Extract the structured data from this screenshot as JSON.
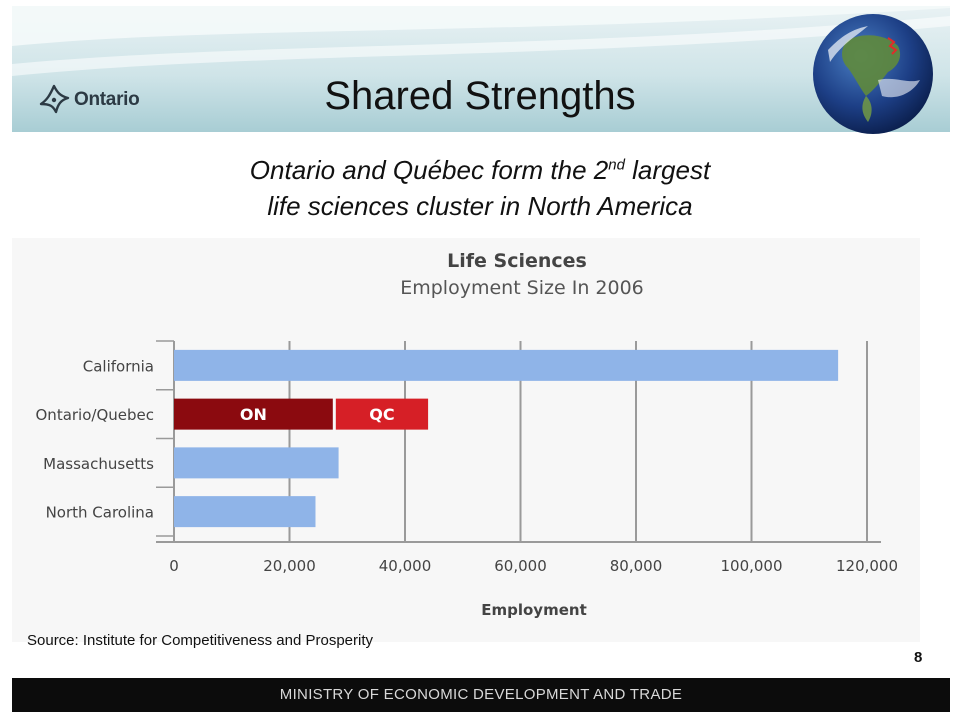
{
  "slide": {
    "title": "Shared Strengths",
    "subtitle_line1_before": "Ontario and Québec form the 2",
    "subtitle_sup": "nd",
    "subtitle_line1_after": " largest",
    "subtitle_line2": "life sciences cluster in North America",
    "logo_text": "Ontario",
    "source": "Source: Institute for Competitiveness and Prosperity",
    "page_number": "8",
    "footer": "MINISTRY OF ECONOMIC DEVELOPMENT AND TRADE"
  },
  "colors": {
    "bar_default": "#8fb4e8",
    "bar_on": "#8b0a0f",
    "bar_qc": "#d61f26",
    "grid": "#9a9a9a",
    "footer_bg": "#0c0c0c"
  },
  "chart_data": {
    "type": "bar",
    "orientation": "horizontal",
    "title": "Life Sciences",
    "subtitle": "Employment Size In 2006",
    "xlabel": "Employment",
    "ylabel": "",
    "xlim": [
      0,
      120000
    ],
    "xticks": [
      0,
      20000,
      40000,
      60000,
      80000,
      100000,
      120000
    ],
    "xtick_labels": [
      "0",
      "20,000",
      "40,000",
      "60,000",
      "80,000",
      "100,000",
      "120,000"
    ],
    "grid": "vertical",
    "categories": [
      "California",
      "Ontario/Quebec",
      "Massachusetts",
      "North Carolina"
    ],
    "bars": [
      {
        "category": "California",
        "segments": [
          {
            "label": "",
            "value": 115000
          }
        ]
      },
      {
        "category": "Ontario/Quebec",
        "segments": [
          {
            "label": "ON",
            "value": 27500
          },
          {
            "label": "QC",
            "value": 16500
          }
        ]
      },
      {
        "category": "Massachusetts",
        "segments": [
          {
            "label": "",
            "value": 28500
          }
        ]
      },
      {
        "category": "North Carolina",
        "segments": [
          {
            "label": "",
            "value": 24500
          }
        ]
      }
    ]
  }
}
